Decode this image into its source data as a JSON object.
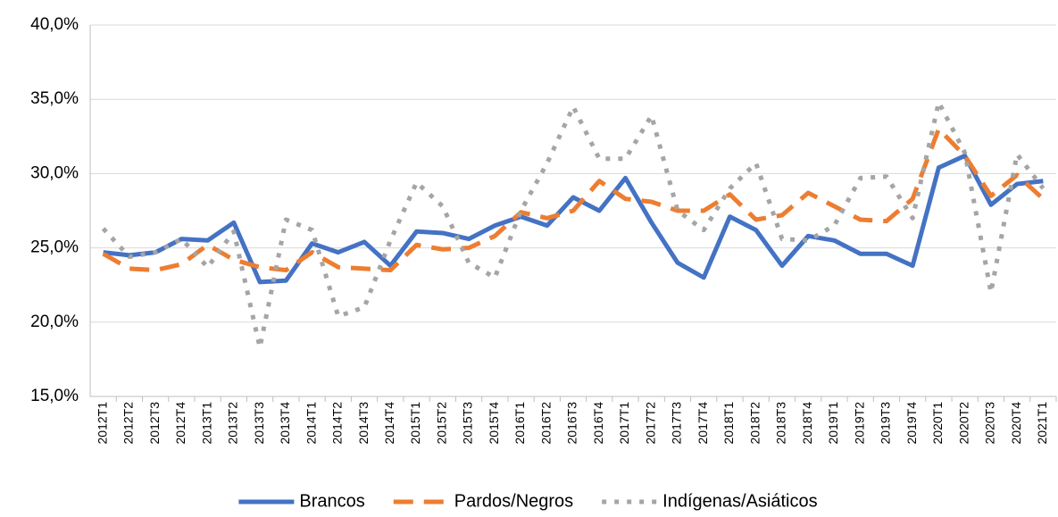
{
  "chart_data": {
    "type": "line",
    "categories": [
      "2012T1",
      "2012T2",
      "2012T3",
      "2012T4",
      "2013T1",
      "2013T2",
      "2013T3",
      "2013T4",
      "2014T1",
      "2014T2",
      "2014T3",
      "2014T4",
      "2015T1",
      "2015T2",
      "2015T3",
      "2015T4",
      "2016T1",
      "2016T2",
      "2016T3",
      "2016T4",
      "2017T1",
      "2017T2",
      "2017T3",
      "2017T4",
      "2018T1",
      "2018T2",
      "2018T3",
      "2018T4",
      "2019T1",
      "2019T2",
      "2019T3",
      "2019T4",
      "2020T1",
      "2020T2",
      "2020T3",
      "2020T4",
      "2021T1"
    ],
    "series": [
      {
        "name": "Brancos",
        "color": "#4472c4",
        "dash": "solid",
        "values": [
          24.7,
          24.5,
          24.7,
          25.6,
          25.5,
          26.7,
          22.7,
          22.8,
          25.3,
          24.7,
          25.4,
          23.8,
          26.1,
          26.0,
          25.6,
          26.5,
          27.1,
          26.5,
          28.4,
          27.5,
          29.7,
          26.7,
          24.0,
          23.0,
          27.1,
          26.2,
          23.8,
          25.8,
          25.5,
          24.6,
          24.6,
          23.8,
          30.4,
          31.2,
          27.9,
          29.3,
          29.5
        ]
      },
      {
        "name": "Pardos/Negros",
        "color": "#ed7d31",
        "dash": "dashed",
        "values": [
          24.6,
          23.6,
          23.5,
          23.9,
          25.2,
          24.2,
          23.7,
          23.5,
          24.7,
          23.7,
          23.6,
          23.5,
          25.2,
          24.9,
          25.0,
          25.8,
          27.4,
          27.0,
          27.5,
          29.5,
          28.3,
          28.1,
          27.5,
          27.5,
          28.6,
          26.9,
          27.2,
          28.7,
          27.8,
          26.9,
          26.8,
          28.3,
          33.0,
          31.2,
          28.5,
          29.9,
          28.3
        ]
      },
      {
        "name": "Indígenas/Asiáticos",
        "color": "#a5a5a5",
        "dash": "dotted",
        "values": [
          26.3,
          24.4,
          24.7,
          25.6,
          23.7,
          26.1,
          18.3,
          26.9,
          26.2,
          20.4,
          21.0,
          25.5,
          29.4,
          27.8,
          24.0,
          23.0,
          27.5,
          30.7,
          34.5,
          31.0,
          31.0,
          33.9,
          27.5,
          26.2,
          29.0,
          30.7,
          25.6,
          25.5,
          26.5,
          29.7,
          29.8,
          27.0,
          34.8,
          31.4,
          22.0,
          31.3,
          29.0
        ]
      }
    ],
    "ylim": [
      15,
      40
    ],
    "yticks": [
      {
        "value": 15,
        "label": "15,0%"
      },
      {
        "value": 20,
        "label": "20,0%"
      },
      {
        "value": 25,
        "label": "25,0%"
      },
      {
        "value": 30,
        "label": "30,0%"
      },
      {
        "value": 35,
        "label": "35,0%"
      },
      {
        "value": 40,
        "label": "40,0%"
      }
    ],
    "grid": true,
    "legend": "bottom"
  }
}
